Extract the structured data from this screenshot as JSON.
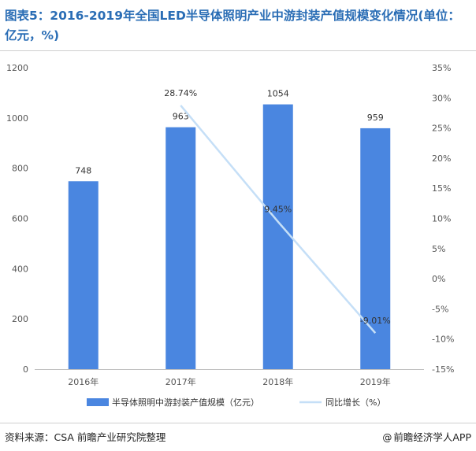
{
  "title": "图表5：2016-2019年全国LED半导体照明产业中游封装产值规模变化情况(单位：亿元，%)",
  "source": "资料来源：CSA 前瞻产业研究院整理",
  "credit": "前瞻经济学人APP",
  "credit_icon": "at-sign-icon",
  "colors": {
    "bar": "#4a86e0",
    "line": "#c5dff7",
    "title": "#2a6db5"
  },
  "chart_data": {
    "type": "bar",
    "categories": [
      "2016年",
      "2017年",
      "2018年",
      "2019年"
    ],
    "series": [
      {
        "name": "半导体照明中游封装产值规模（亿元）",
        "type": "bar",
        "axis": "left",
        "values": [
          748,
          963,
          1054,
          959
        ],
        "labels": [
          "748",
          "963",
          "1054",
          "959"
        ]
      },
      {
        "name": "同比增长（%）",
        "type": "line",
        "axis": "right",
        "values": [
          null,
          28.74,
          9.45,
          -9.01
        ],
        "labels": [
          "",
          "28.74%",
          "9.45%",
          "-9.01%"
        ]
      }
    ],
    "y_left": {
      "min": 0,
      "max": 1200,
      "ticks": [
        "0",
        "200",
        "400",
        "600",
        "800",
        "1000",
        "1200"
      ]
    },
    "y_right": {
      "min": -15,
      "max": 35,
      "ticks": [
        "-15%",
        "-10%",
        "-5%",
        "0%",
        "5%",
        "10%",
        "15%",
        "20%",
        "25%",
        "30%",
        "35%"
      ]
    },
    "grid": false,
    "legend_position": "bottom"
  }
}
